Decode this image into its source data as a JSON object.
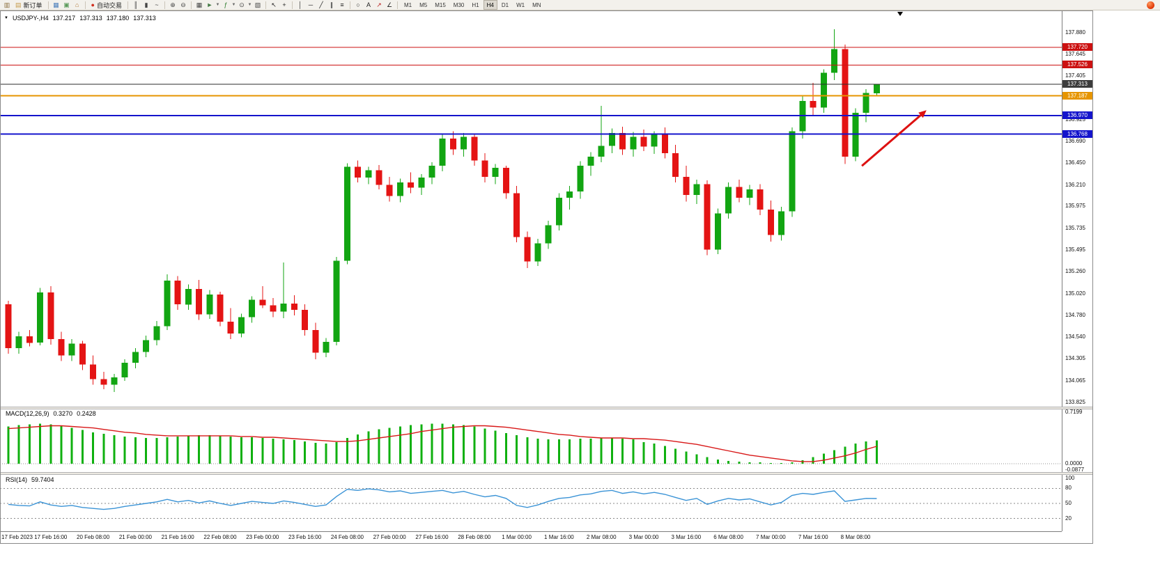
{
  "toolbar": {
    "items": [
      {
        "type": "icon",
        "name": "new-chart-icon",
        "glyph": "▥",
        "color": "#8a6d3b"
      },
      {
        "type": "button",
        "name": "new-order-button",
        "icon": "▤",
        "icon_color": "#c59a4a",
        "label": "新订单"
      },
      {
        "type": "sep"
      },
      {
        "type": "icon",
        "name": "market-watch-icon",
        "glyph": "▦",
        "color": "#4a7ebb"
      },
      {
        "type": "icon",
        "name": "data-window-icon",
        "glyph": "▣",
        "color": "#5a9a5a"
      },
      {
        "type": "icon",
        "name": "navigator-icon",
        "glyph": "⌂",
        "color": "#b07a3a"
      },
      {
        "type": "sep"
      },
      {
        "type": "button",
        "name": "auto-trading-button",
        "icon": "●",
        "icon_color": "#d03020",
        "label": "自动交易"
      },
      {
        "type": "sep"
      },
      {
        "type": "icon",
        "name": "bar-chart-icon",
        "glyph": "║",
        "color": "#444444"
      },
      {
        "type": "icon",
        "name": "candlestick-chart-icon",
        "glyph": "▮",
        "color": "#444444"
      },
      {
        "type": "icon",
        "name": "line-chart-icon",
        "glyph": "~",
        "color": "#444444"
      },
      {
        "type": "sep"
      },
      {
        "type": "icon",
        "name": "zoom-in-icon",
        "glyph": "⊕",
        "color": "#444444"
      },
      {
        "type": "icon",
        "name": "zoom-out-icon",
        "glyph": "⊖",
        "color": "#444444"
      },
      {
        "type": "sep"
      },
      {
        "type": "icon",
        "name": "tile-windows-icon",
        "glyph": "▦",
        "color": "#444444"
      },
      {
        "type": "icon",
        "name": "auto-scroll-icon",
        "glyph": "►",
        "color": "#447a44"
      },
      {
        "type": "icon",
        "name": "chart-shift-icon",
        "glyph": "▼",
        "color": "#666666",
        "small": true
      },
      {
        "type": "icon",
        "name": "indicators-icon",
        "glyph": "ƒ",
        "color": "#2a7a2a"
      },
      {
        "type": "icon",
        "name": "indicators-caret-icon",
        "glyph": "▼",
        "color": "#666666",
        "small": true
      },
      {
        "type": "icon",
        "name": "periods-icon",
        "glyph": "⊙",
        "color": "#444444"
      },
      {
        "type": "icon",
        "name": "periods-caret-icon",
        "glyph": "▼",
        "color": "#666666",
        "small": true
      },
      {
        "type": "icon",
        "name": "templates-icon",
        "glyph": "▧",
        "color": "#444444"
      },
      {
        "type": "sep"
      },
      {
        "type": "icon",
        "name": "cursor-icon",
        "glyph": "↖",
        "color": "#222222"
      },
      {
        "type": "icon",
        "name": "crosshair-icon",
        "glyph": "+",
        "color": "#222222"
      },
      {
        "type": "sep"
      },
      {
        "type": "icon",
        "name": "vertical-line-icon",
        "glyph": "│",
        "color": "#222222"
      },
      {
        "type": "icon",
        "name": "horizontal-line-icon",
        "glyph": "─",
        "color": "#222222"
      },
      {
        "type": "icon",
        "name": "trendline-icon",
        "glyph": "╱",
        "color": "#222222"
      },
      {
        "type": "icon",
        "name": "equidistant-channel-icon",
        "glyph": "∥",
        "color": "#222222"
      },
      {
        "type": "icon",
        "name": "fibonacci-icon",
        "glyph": "≡",
        "color": "#222222"
      },
      {
        "type": "sep"
      },
      {
        "type": "icon",
        "name": "shapes-icon",
        "glyph": "○",
        "color": "#222222"
      },
      {
        "type": "icon",
        "name": "text-icon",
        "glyph": "A",
        "color": "#222222"
      },
      {
        "type": "icon",
        "name": "arrows-icon",
        "glyph": "↗",
        "color": "#bb2222"
      },
      {
        "type": "icon",
        "name": "angle-icon",
        "glyph": "∠",
        "color": "#222222"
      },
      {
        "type": "sep"
      }
    ],
    "timeframes": {
      "items": [
        "M1",
        "M5",
        "M15",
        "M30",
        "H1",
        "H4",
        "D1",
        "W1",
        "MN"
      ],
      "active": "H4"
    }
  },
  "chart_data": {
    "type": "candlestick",
    "symbol_period": "USDJPY-,H4",
    "symbol": "USDJPY-",
    "timeframe": "H4",
    "current": {
      "open": "137.217",
      "high": "137.313",
      "low": "137.180",
      "close": "137.313"
    },
    "ylim": [
      133.825,
      137.88
    ],
    "price_axis_ticks": [
      "137.880",
      "137.645",
      "137.405",
      "137.165",
      "136.925",
      "136.690",
      "136.450",
      "136.210",
      "135.975",
      "135.735",
      "135.495",
      "135.260",
      "135.020",
      "134.780",
      "134.540",
      "134.305",
      "134.065",
      "133.825"
    ],
    "hlines": [
      {
        "price": 137.72,
        "label": "137.720",
        "color": "#cc1111",
        "width": 1.3
      },
      {
        "price": 137.526,
        "label": "137.526",
        "color": "#cc1111",
        "width": 1.3
      },
      {
        "price": 137.313,
        "label": "137.313",
        "color": "#2b2b2b",
        "width": 1,
        "tag": "#3c3c3c"
      },
      {
        "price": 137.187,
        "label": "137.187",
        "color": "#e69500",
        "width": 2
      },
      {
        "price": 136.97,
        "label": "136.970",
        "color": "#1414cc",
        "width": 2
      },
      {
        "price": 136.768,
        "label": "136.768",
        "color": "#1414cc",
        "width": 2
      }
    ],
    "colors": {
      "bull": "#12a512",
      "bear": "#e41414",
      "macd_hist": "#0fb00f",
      "macd_signal": "#d81818",
      "rsi_line": "#3a93d6",
      "arrow": "#dd1111"
    },
    "candles": [
      [
        134.9,
        134.94,
        134.36,
        134.42
      ],
      [
        134.42,
        134.6,
        134.36,
        134.55
      ],
      [
        134.55,
        134.62,
        134.44,
        134.48
      ],
      [
        134.48,
        135.08,
        134.45,
        135.03
      ],
      [
        135.03,
        135.1,
        134.46,
        134.52
      ],
      [
        134.52,
        134.6,
        134.28,
        134.34
      ],
      [
        134.34,
        134.52,
        134.28,
        134.47
      ],
      [
        134.47,
        134.5,
        134.18,
        134.24
      ],
      [
        134.24,
        134.34,
        134.02,
        134.08
      ],
      [
        134.08,
        134.16,
        133.97,
        134.02
      ],
      [
        134.02,
        134.14,
        133.94,
        134.1
      ],
      [
        134.1,
        134.3,
        134.06,
        134.26
      ],
      [
        134.26,
        134.42,
        134.2,
        134.38
      ],
      [
        134.38,
        134.56,
        134.32,
        134.51
      ],
      [
        134.51,
        134.72,
        134.45,
        134.66
      ],
      [
        134.66,
        135.23,
        134.62,
        135.16
      ],
      [
        135.16,
        135.21,
        134.84,
        134.9
      ],
      [
        134.9,
        135.12,
        134.84,
        135.07
      ],
      [
        135.07,
        135.17,
        134.73,
        134.79
      ],
      [
        134.79,
        135.06,
        134.74,
        135.01
      ],
      [
        135.01,
        135.04,
        134.66,
        134.71
      ],
      [
        134.71,
        134.86,
        134.52,
        134.58
      ],
      [
        134.58,
        134.8,
        134.54,
        134.76
      ],
      [
        134.76,
        134.99,
        134.7,
        134.95
      ],
      [
        134.95,
        135.1,
        134.86,
        134.89
      ],
      [
        134.89,
        134.97,
        134.76,
        134.82
      ],
      [
        134.82,
        135.36,
        134.75,
        134.91
      ],
      [
        134.91,
        135.0,
        134.78,
        134.84
      ],
      [
        134.84,
        134.9,
        134.56,
        134.62
      ],
      [
        134.62,
        134.7,
        134.3,
        134.37
      ],
      [
        134.37,
        134.53,
        134.32,
        134.49
      ],
      [
        134.49,
        135.42,
        134.45,
        135.38
      ],
      [
        135.38,
        136.45,
        135.34,
        136.41
      ],
      [
        136.41,
        136.48,
        136.24,
        136.29
      ],
      [
        136.29,
        136.41,
        136.22,
        136.37
      ],
      [
        136.37,
        136.43,
        136.16,
        136.21
      ],
      [
        136.21,
        136.3,
        136.03,
        136.09
      ],
      [
        136.09,
        136.28,
        136.02,
        136.24
      ],
      [
        136.24,
        136.35,
        136.12,
        136.18
      ],
      [
        136.18,
        136.33,
        136.1,
        136.29
      ],
      [
        136.29,
        136.46,
        136.22,
        136.42
      ],
      [
        136.42,
        136.77,
        136.36,
        136.72
      ],
      [
        136.72,
        136.8,
        136.54,
        136.6
      ],
      [
        136.6,
        136.78,
        136.52,
        136.74
      ],
      [
        136.74,
        136.76,
        136.42,
        136.48
      ],
      [
        136.48,
        136.56,
        136.24,
        136.3
      ],
      [
        136.3,
        136.44,
        136.22,
        136.4
      ],
      [
        136.4,
        136.42,
        136.06,
        136.12
      ],
      [
        136.12,
        136.2,
        135.58,
        135.64
      ],
      [
        135.64,
        135.7,
        135.3,
        135.37
      ],
      [
        135.37,
        135.62,
        135.32,
        135.57
      ],
      [
        135.57,
        135.82,
        135.51,
        135.77
      ],
      [
        135.77,
        136.12,
        135.71,
        136.07
      ],
      [
        136.07,
        136.2,
        135.94,
        136.14
      ],
      [
        136.14,
        136.47,
        136.06,
        136.42
      ],
      [
        136.42,
        136.57,
        136.31,
        136.52
      ],
      [
        136.52,
        137.08,
        136.46,
        136.64
      ],
      [
        136.64,
        136.83,
        136.56,
        136.78
      ],
      [
        136.78,
        136.85,
        136.54,
        136.6
      ],
      [
        136.6,
        136.79,
        136.52,
        136.74
      ],
      [
        136.74,
        136.82,
        136.58,
        136.63
      ],
      [
        136.63,
        136.8,
        136.55,
        136.76
      ],
      [
        136.76,
        136.84,
        136.5,
        136.56
      ],
      [
        136.56,
        136.65,
        136.24,
        136.3
      ],
      [
        136.3,
        136.42,
        136.03,
        136.1
      ],
      [
        136.1,
        136.27,
        136.0,
        136.22
      ],
      [
        136.22,
        136.26,
        135.44,
        135.5
      ],
      [
        135.5,
        135.95,
        135.45,
        135.9
      ],
      [
        135.9,
        136.24,
        135.84,
        136.19
      ],
      [
        136.19,
        136.27,
        136.02,
        136.07
      ],
      [
        136.07,
        136.21,
        135.99,
        136.16
      ],
      [
        136.16,
        136.22,
        135.88,
        135.94
      ],
      [
        135.94,
        136.04,
        135.59,
        135.66
      ],
      [
        135.66,
        135.97,
        135.6,
        135.92
      ],
      [
        135.92,
        136.84,
        135.86,
        136.8
      ],
      [
        136.8,
        137.18,
        136.72,
        137.13
      ],
      [
        137.13,
        137.33,
        136.97,
        137.06
      ],
      [
        137.06,
        137.48,
        137.0,
        137.44
      ],
      [
        137.44,
        137.92,
        137.36,
        137.7
      ],
      [
        137.7,
        137.75,
        136.44,
        136.52
      ],
      [
        136.52,
        137.05,
        136.47,
        137.0
      ],
      [
        137.0,
        137.26,
        136.9,
        137.22
      ],
      [
        137.217,
        137.313,
        137.18,
        137.313
      ]
    ],
    "annotations": {
      "trend_arrow": {
        "from": {
          "index": 80.6,
          "price": 136.42
        },
        "to": {
          "index": 86.7,
          "price": 137.03
        }
      }
    },
    "macd": {
      "title": "MACD(12,26,9)",
      "value": "0.3270",
      "signal_value": "0.2428",
      "axis_labels": [
        "0.7199",
        "0.0000",
        "-0.0877"
      ],
      "axis_values": [
        0.7199,
        0,
        -0.0877
      ],
      "histogram": [
        0.52,
        0.54,
        0.55,
        0.56,
        0.55,
        0.53,
        0.5,
        0.47,
        0.44,
        0.42,
        0.4,
        0.38,
        0.37,
        0.36,
        0.36,
        0.37,
        0.38,
        0.39,
        0.4,
        0.4,
        0.39,
        0.38,
        0.37,
        0.37,
        0.36,
        0.35,
        0.34,
        0.33,
        0.31,
        0.29,
        0.28,
        0.3,
        0.36,
        0.41,
        0.45,
        0.48,
        0.5,
        0.52,
        0.54,
        0.55,
        0.56,
        0.56,
        0.55,
        0.54,
        0.52,
        0.49,
        0.46,
        0.43,
        0.4,
        0.37,
        0.35,
        0.34,
        0.34,
        0.34,
        0.35,
        0.35,
        0.36,
        0.36,
        0.35,
        0.34,
        0.3,
        0.28,
        0.25,
        0.21,
        0.17,
        0.13,
        0.09,
        0.06,
        0.04,
        0.03,
        0.02,
        0.02,
        0.01,
        0.01,
        0.02,
        0.05,
        0.09,
        0.14,
        0.19,
        0.24,
        0.28,
        0.31,
        0.327
      ],
      "signal": [
        0.49,
        0.5,
        0.51,
        0.52,
        0.53,
        0.53,
        0.52,
        0.51,
        0.5,
        0.48,
        0.46,
        0.44,
        0.43,
        0.41,
        0.4,
        0.39,
        0.39,
        0.39,
        0.39,
        0.39,
        0.39,
        0.39,
        0.38,
        0.38,
        0.37,
        0.37,
        0.36,
        0.35,
        0.34,
        0.33,
        0.32,
        0.31,
        0.31,
        0.32,
        0.34,
        0.36,
        0.38,
        0.4,
        0.42,
        0.45,
        0.47,
        0.49,
        0.51,
        0.52,
        0.53,
        0.53,
        0.52,
        0.51,
        0.49,
        0.47,
        0.45,
        0.43,
        0.41,
        0.4,
        0.38,
        0.37,
        0.36,
        0.36,
        0.36,
        0.35,
        0.35,
        0.34,
        0.33,
        0.31,
        0.29,
        0.27,
        0.24,
        0.21,
        0.18,
        0.15,
        0.12,
        0.1,
        0.08,
        0.06,
        0.04,
        0.03,
        0.03,
        0.05,
        0.08,
        0.11,
        0.15,
        0.2,
        0.2428
      ]
    },
    "rsi": {
      "title": "RSI(14)",
      "value": "59.7404",
      "axis_labels": [
        "100",
        "80",
        "50",
        "20"
      ],
      "axis_values": [
        100,
        80,
        50,
        20
      ],
      "levels": [
        80,
        50,
        20
      ],
      "values": [
        48,
        46,
        45,
        53,
        47,
        44,
        46,
        42,
        40,
        38,
        40,
        44,
        47,
        50,
        53,
        58,
        53,
        56,
        51,
        55,
        50,
        46,
        50,
        54,
        52,
        50,
        55,
        52,
        48,
        44,
        47,
        64,
        78,
        76,
        79,
        77,
        73,
        75,
        70,
        72,
        74,
        76,
        71,
        74,
        68,
        63,
        66,
        60,
        46,
        42,
        47,
        54,
        60,
        62,
        67,
        69,
        74,
        76,
        70,
        73,
        69,
        72,
        68,
        62,
        56,
        60,
        48,
        55,
        60,
        57,
        59,
        53,
        47,
        52,
        66,
        70,
        68,
        72,
        75,
        54,
        57,
        60,
        59.74
      ]
    },
    "time_axis_labels": [
      "17 Feb 2023",
      "17 Feb 16:00",
      "20 Feb 08:00",
      "21 Feb 00:00",
      "21 Feb 16:00",
      "22 Feb 08:00",
      "23 Feb 00:00",
      "23 Feb 16:00",
      "24 Feb 08:00",
      "27 Feb 00:00",
      "27 Feb 16:00",
      "28 Feb 08:00",
      "1 Mar 00:00",
      "1 Mar 16:00",
      "2 Mar 08:00",
      "3 Mar 00:00",
      "3 Mar 16:00",
      "6 Mar 08:00",
      "7 Mar 00:00",
      "7 Mar 16:00",
      "8 Mar 08:00"
    ]
  }
}
